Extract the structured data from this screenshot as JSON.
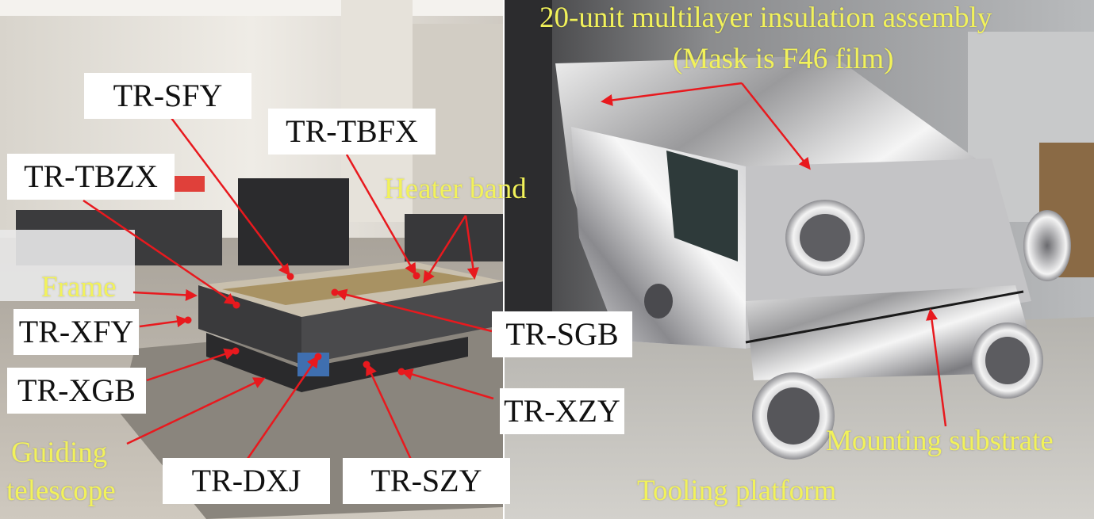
{
  "labels": {
    "tr_sfy": "TR-SFY",
    "tr_tbfx": "TR-TBFX",
    "tr_tbzx": "TR-TBZX",
    "tr_xfy": "TR-XFY",
    "tr_xgb": "TR-XGB",
    "tr_sgb": "TR-SGB",
    "tr_xzy": "TR-XZY",
    "tr_dxj": "TR-DXJ",
    "tr_szy": "TR-SZY"
  },
  "annotations": {
    "heater_band": "Heater band",
    "frame": "Frame",
    "guiding_telescope_line1": "Guiding",
    "guiding_telescope_line2": "telescope",
    "mli_line1": "20-unit multilayer insulation assembly",
    "mli_line2": "(Mask is F46 film)",
    "mounting_substrate": "Mounting substrate",
    "tooling_platform": "Tooling platform"
  },
  "colors": {
    "arrow": "#e8191e",
    "annotation_text": "#f2f25a",
    "label_background": "#ffffff",
    "label_text": "#111111"
  }
}
